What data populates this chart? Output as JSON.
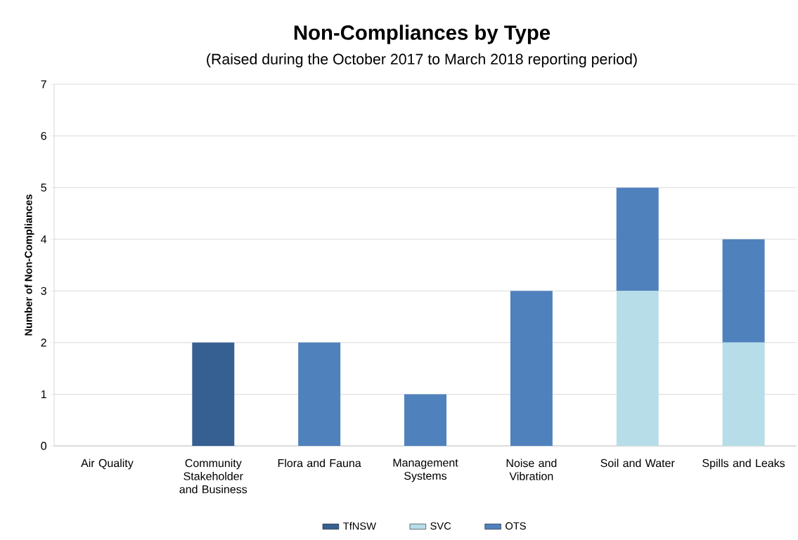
{
  "chart_data": {
    "type": "bar",
    "title": "Non-Compliances by Type",
    "subtitle": "(Raised during the October 2017 to March 2018 reporting period)",
    "ylabel": "Number of Non-Compliances",
    "categories": [
      "Air Quality",
      "Community Stakeholder and Business",
      "Flora and Fauna",
      "Management Systems",
      "Noise and Vibration",
      "Soil and Water",
      "Spills and Leaks"
    ],
    "stacked": true,
    "series": [
      {
        "name": "TfNSW",
        "color": "#376092",
        "values": [
          0,
          2,
          0,
          0,
          0,
          0,
          0
        ]
      },
      {
        "name": "SVC",
        "color": "#b7dee8",
        "values": [
          0,
          0,
          0,
          0,
          0,
          3,
          2
        ]
      },
      {
        "name": "OTS",
        "color": "#4f81bd",
        "values": [
          0,
          0,
          2,
          1,
          3,
          2,
          2
        ]
      }
    ],
    "ylim": [
      0,
      7
    ],
    "yticks": [
      0,
      1,
      2,
      3,
      4,
      5,
      6,
      7
    ],
    "grid": "y",
    "legend": "bottom"
  }
}
